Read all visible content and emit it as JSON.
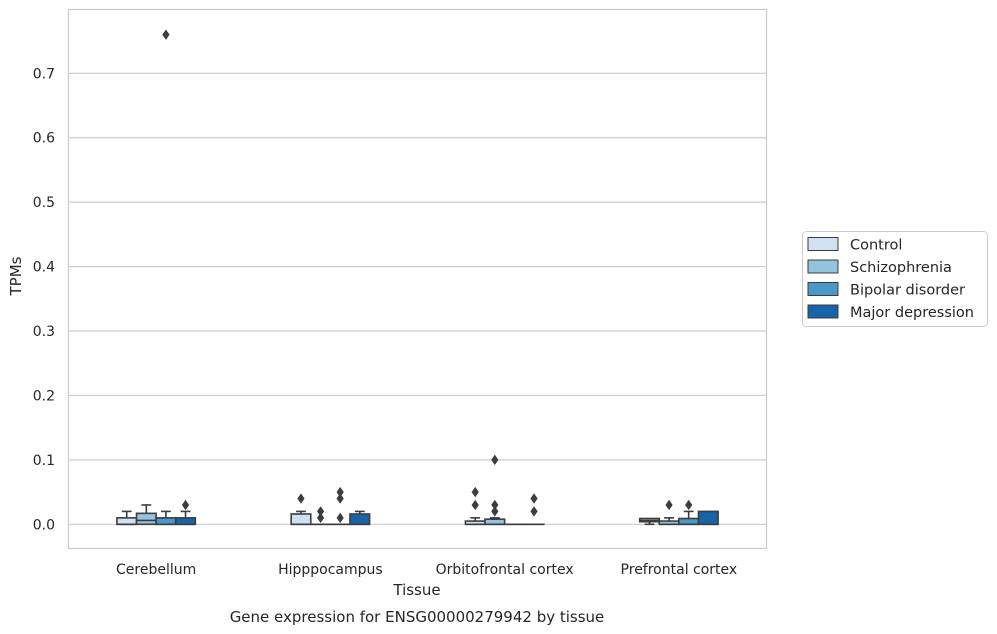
{
  "chart_data": {
    "type": "box",
    "title": "Gene expression for ENSG00000279942 by tissue",
    "xlabel": "Tissue",
    "ylabel": "TPMs",
    "categories": [
      "Cerebellum",
      "Hipppocampus",
      "Orbitofrontal cortex",
      "Prefrontal cortex"
    ],
    "ylim": [
      -0.037,
      0.775
    ],
    "yticks": [
      0.0,
      0.1,
      0.2,
      0.3,
      0.4,
      0.5,
      0.6,
      0.7
    ],
    "ytick_labels": [
      "0.0",
      "0.1",
      "0.2",
      "0.3",
      "0.4",
      "0.5",
      "0.6",
      "0.7"
    ],
    "grid": "horizontal",
    "legend_position": "right",
    "series": [
      {
        "name": "Control",
        "color": "#cfe1f2",
        "boxes": [
          {
            "min": 0.0,
            "q1": 0.0,
            "median": 0.0,
            "q3": 0.01,
            "max": 0.02,
            "outliers": []
          },
          {
            "min": 0.0,
            "q1": 0.0,
            "median": 0.0,
            "q3": 0.016,
            "max": 0.02,
            "outliers": [
              0.04
            ]
          },
          {
            "min": 0.0,
            "q1": 0.0,
            "median": 0.0,
            "q3": 0.005,
            "max": 0.01,
            "outliers": [
              0.03,
              0.05
            ]
          },
          {
            "min": 0.0,
            "q1": 0.004,
            "median": 0.006,
            "q3": 0.009,
            "max": 0.009,
            "outliers": []
          }
        ]
      },
      {
        "name": "Schizophrenia",
        "color": "#93c4de",
        "boxes": [
          {
            "min": 0.0,
            "q1": 0.0,
            "median": 0.006,
            "q3": 0.017,
            "max": 0.03,
            "outliers": []
          },
          {
            "min": 0.0,
            "q1": 0.0,
            "median": 0.0,
            "q3": 0.0,
            "max": 0.0,
            "outliers": [
              0.01,
              0.02
            ]
          },
          {
            "min": 0.0,
            "q1": 0.0,
            "median": 0.0,
            "q3": 0.008,
            "max": 0.01,
            "outliers": [
              0.02,
              0.03,
              0.1
            ]
          },
          {
            "min": 0.0,
            "q1": 0.0,
            "median": 0.0,
            "q3": 0.005,
            "max": 0.01,
            "outliers": [
              0.03
            ]
          }
        ]
      },
      {
        "name": "Bipolar disorder",
        "color": "#4a98c9",
        "boxes": [
          {
            "min": 0.0,
            "q1": 0.0,
            "median": 0.0,
            "q3": 0.01,
            "max": 0.02,
            "outliers": [
              0.76
            ]
          },
          {
            "min": 0.0,
            "q1": 0.0,
            "median": 0.0,
            "q3": 0.0,
            "max": 0.0,
            "outliers": [
              0.01,
              0.04,
              0.05
            ]
          },
          {
            "min": 0.0,
            "q1": 0.0,
            "median": 0.0,
            "q3": 0.0,
            "max": 0.0,
            "outliers": []
          },
          {
            "min": 0.0,
            "q1": 0.0,
            "median": 0.0,
            "q3": 0.009,
            "max": 0.02,
            "outliers": [
              0.03
            ]
          }
        ]
      },
      {
        "name": "Major depression",
        "color": "#1764ab",
        "boxes": [
          {
            "min": 0.0,
            "q1": 0.0,
            "median": 0.0,
            "q3": 0.01,
            "max": 0.02,
            "outliers": [
              0.03
            ]
          },
          {
            "min": 0.0,
            "q1": 0.0,
            "median": 0.0,
            "q3": 0.016,
            "max": 0.02,
            "outliers": []
          },
          {
            "min": 0.0,
            "q1": 0.0,
            "median": 0.0,
            "q3": 0.0,
            "max": 0.0,
            "outliers": [
              0.02,
              0.04
            ]
          },
          {
            "min": 0.0,
            "q1": 0.0,
            "median": 0.0,
            "q3": 0.02,
            "max": 0.02,
            "outliers": []
          }
        ]
      }
    ]
  }
}
